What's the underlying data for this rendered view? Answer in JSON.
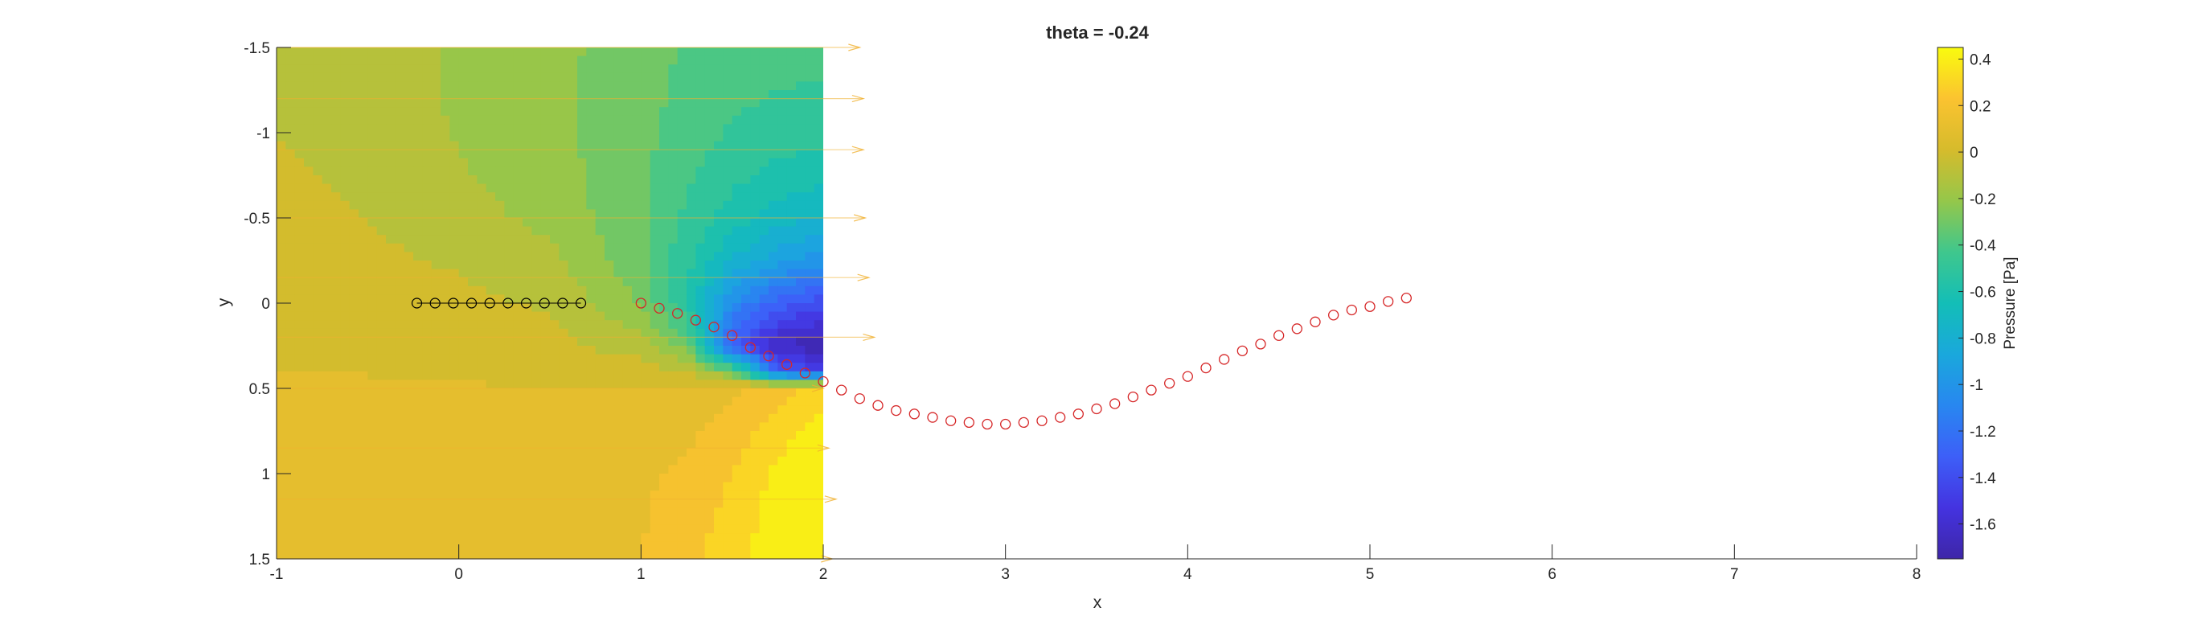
{
  "chart_data": {
    "type": "contour-vector",
    "title": "theta = -0.24",
    "xlabel": "x",
    "ylabel": "y",
    "xlim": [
      -1,
      8
    ],
    "ylim": [
      -1.5,
      1.5
    ],
    "y_direction": "reversed",
    "xticks": [
      -1,
      0,
      1,
      2,
      3,
      4,
      5,
      6,
      7,
      8
    ],
    "xtick_labels": [
      "-1",
      "0",
      "1",
      "2",
      "3",
      "4",
      "5",
      "6",
      "7",
      "8"
    ],
    "yticks": [
      -1.5,
      -1,
      -0.5,
      0,
      0.5,
      1,
      1.5
    ],
    "ytick_labels": [
      "-1.5",
      "-1",
      "-0.5",
      "0",
      "0.5",
      "1",
      "1.5"
    ],
    "contour_extent": {
      "x": [
        -1,
        2
      ],
      "y": [
        -1.5,
        1.5
      ]
    },
    "colorbar": {
      "label": "Pressure [Pa]",
      "limits": [
        -1.75,
        0.45
      ],
      "ticks": [
        0.4,
        0.2,
        0,
        -0.2,
        -0.4,
        -0.6,
        -0.8,
        -1,
        -1.2,
        -1.4,
        -1.6
      ],
      "tick_labels": [
        "0.4",
        "0.2",
        "0",
        "-0.2",
        "-0.4",
        "-0.6",
        "-0.8",
        "-1",
        "-1.2",
        "-1.4",
        "-1.6"
      ],
      "colormap": "parula"
    },
    "black_markers": {
      "x": [
        -0.23,
        -0.13,
        -0.03,
        0.07,
        0.17,
        0.27,
        0.37,
        0.47,
        0.57,
        0.67
      ],
      "y": [
        0,
        0,
        0,
        0,
        0,
        0,
        0,
        0,
        0,
        0
      ],
      "color": "#000000"
    },
    "red_markers": {
      "color": "#d62728",
      "points": [
        [
          1.0,
          0.0
        ],
        [
          1.1,
          0.03
        ],
        [
          1.2,
          0.06
        ],
        [
          1.3,
          0.1
        ],
        [
          1.4,
          0.14
        ],
        [
          1.5,
          0.19
        ],
        [
          1.6,
          0.26
        ],
        [
          1.7,
          0.31
        ],
        [
          1.8,
          0.36
        ],
        [
          1.9,
          0.41
        ],
        [
          2.0,
          0.46
        ],
        [
          2.1,
          0.51
        ],
        [
          2.2,
          0.56
        ],
        [
          2.3,
          0.6
        ],
        [
          2.4,
          0.63
        ],
        [
          2.5,
          0.65
        ],
        [
          2.6,
          0.67
        ],
        [
          2.7,
          0.69
        ],
        [
          2.8,
          0.7
        ],
        [
          2.9,
          0.71
        ],
        [
          3.0,
          0.71
        ],
        [
          3.1,
          0.7
        ],
        [
          3.2,
          0.69
        ],
        [
          3.3,
          0.67
        ],
        [
          3.4,
          0.65
        ],
        [
          3.5,
          0.62
        ],
        [
          3.6,
          0.59
        ],
        [
          3.7,
          0.55
        ],
        [
          3.8,
          0.51
        ],
        [
          3.9,
          0.47
        ],
        [
          4.0,
          0.43
        ],
        [
          4.1,
          0.38
        ],
        [
          4.2,
          0.33
        ],
        [
          4.3,
          0.28
        ],
        [
          4.4,
          0.24
        ],
        [
          4.5,
          0.19
        ],
        [
          4.6,
          0.15
        ],
        [
          4.7,
          0.11
        ],
        [
          4.8,
          0.07
        ],
        [
          4.9,
          0.04
        ],
        [
          5.0,
          0.02
        ],
        [
          5.1,
          -0.01
        ],
        [
          5.2,
          -0.03
        ]
      ]
    },
    "pressure_field": {
      "x": [
        -1,
        -0.5,
        0,
        0.5,
        1,
        1.25,
        1.5,
        1.75,
        2
      ],
      "y": [
        -1.5,
        -1.25,
        -1,
        -0.75,
        -0.5,
        -0.25,
        0,
        0.25,
        0.4,
        0.5,
        0.75,
        1,
        1.25,
        1.5
      ],
      "values": [
        [
          -0.05,
          -0.08,
          -0.17,
          -0.22,
          -0.3,
          -0.36,
          -0.4,
          -0.42,
          -0.42
        ],
        [
          -0.05,
          -0.08,
          -0.17,
          -0.23,
          -0.31,
          -0.38,
          -0.42,
          -0.45,
          -0.46
        ],
        [
          -0.05,
          -0.07,
          -0.16,
          -0.22,
          -0.32,
          -0.4,
          -0.46,
          -0.5,
          -0.52
        ],
        [
          -0.04,
          -0.06,
          -0.14,
          -0.2,
          -0.33,
          -0.43,
          -0.52,
          -0.58,
          -0.62
        ],
        [
          -0.03,
          -0.05,
          -0.11,
          -0.18,
          -0.33,
          -0.47,
          -0.6,
          -0.7,
          -0.76
        ],
        [
          -0.02,
          -0.03,
          -0.06,
          -0.12,
          -0.32,
          -0.52,
          -0.75,
          -0.92,
          -1.0
        ],
        [
          -0.01,
          -0.02,
          -0.03,
          -0.06,
          -0.26,
          -0.55,
          -1.05,
          -1.3,
          -1.4
        ],
        [
          0.0,
          -0.01,
          -0.02,
          -0.02,
          -0.1,
          -0.3,
          -1.35,
          -1.65,
          -1.72
        ],
        [
          0.05,
          0.04,
          0.03,
          0.03,
          0.0,
          -0.05,
          -0.3,
          -1.3,
          -1.5
        ],
        [
          0.08,
          0.08,
          0.06,
          0.05,
          0.06,
          0.08,
          0.12,
          0.2,
          0.28
        ],
        [
          0.1,
          0.11,
          0.1,
          0.09,
          0.1,
          0.13,
          0.2,
          0.3,
          0.4
        ],
        [
          0.1,
          0.12,
          0.11,
          0.11,
          0.13,
          0.17,
          0.25,
          0.38,
          0.44
        ],
        [
          0.1,
          0.12,
          0.12,
          0.12,
          0.14,
          0.2,
          0.28,
          0.4,
          0.45
        ],
        [
          0.1,
          0.12,
          0.12,
          0.13,
          0.15,
          0.22,
          0.3,
          0.42,
          0.45
        ]
      ]
    },
    "velocity_vectors": {
      "color": "#f0b030",
      "rows_y": [
        -1.5,
        -1.2,
        -0.9,
        -0.5,
        -0.15,
        0.2,
        0.5,
        0.85,
        1.15,
        1.5
      ],
      "start_x": -1,
      "end_x": [
        2.2,
        2.22,
        2.22,
        2.23,
        2.25,
        2.28,
        2.0,
        2.03,
        2.07,
        2.05
      ]
    }
  }
}
